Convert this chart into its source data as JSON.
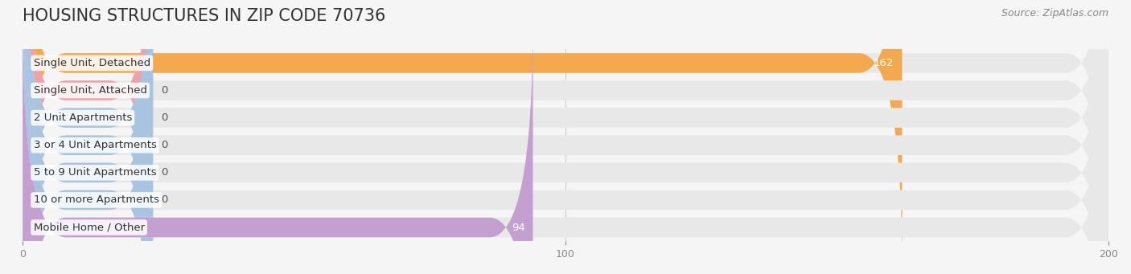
{
  "title": "HOUSING STRUCTURES IN ZIP CODE 70736",
  "source": "Source: ZipAtlas.com",
  "categories": [
    "Single Unit, Detached",
    "Single Unit, Attached",
    "2 Unit Apartments",
    "3 or 4 Unit Apartments",
    "5 to 9 Unit Apartments",
    "10 or more Apartments",
    "Mobile Home / Other"
  ],
  "values": [
    162,
    0,
    0,
    0,
    0,
    0,
    94
  ],
  "bar_colors": [
    "#f5a94e",
    "#f0a0a8",
    "#a8c4e0",
    "#a8c4e0",
    "#a8c4e0",
    "#a8c4e0",
    "#c4a0d0"
  ],
  "background_color": "#f5f5f5",
  "bar_bg_color": "#e8e8e8",
  "xlim": [
    0,
    200
  ],
  "xticks": [
    0,
    100,
    200
  ],
  "title_fontsize": 15,
  "label_fontsize": 9.5,
  "value_fontsize": 9.5,
  "source_fontsize": 9
}
